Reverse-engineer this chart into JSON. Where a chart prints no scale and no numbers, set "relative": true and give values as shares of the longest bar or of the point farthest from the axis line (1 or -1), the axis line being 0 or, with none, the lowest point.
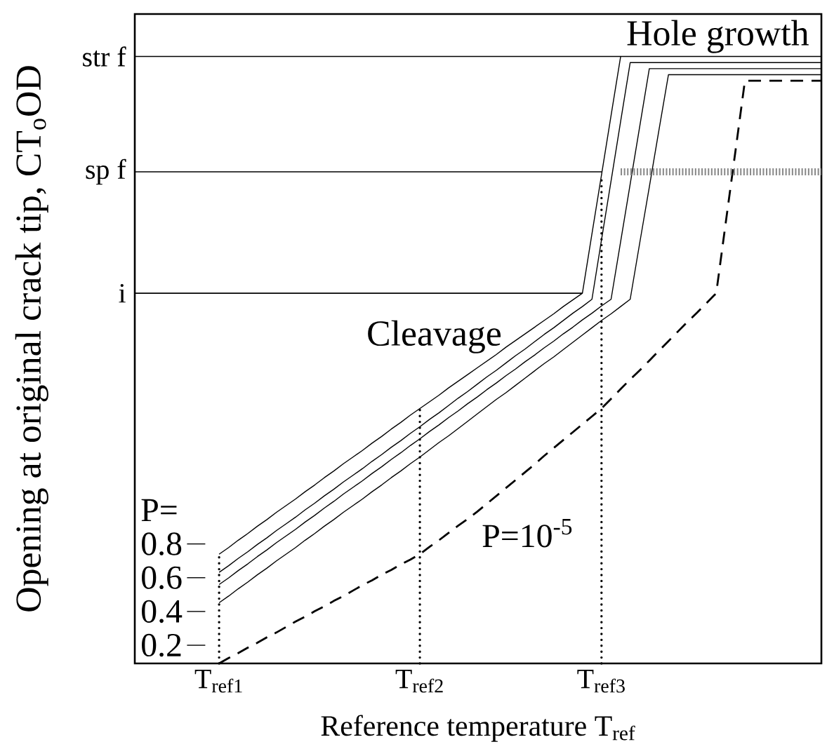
{
  "chart_data": {
    "type": "line",
    "relative": true,
    "legend": "bottom left",
    "xlabel": "Reference temperature T$_{ref}$",
    "ylabel": "Opening at original crack tip, CT$_{o}$OD",
    "legend_title": "P=",
    "annotations": [
      "Hole growth",
      "Cleavage"
    ],
    "categories": [
      "T$_{ref1}$",
      null,
      null,
      null,
      null,
      null,
      null,
      null,
      null,
      null,
      null,
      null,
      null,
      null,
      null,
      null,
      null,
      null,
      null,
      null,
      null,
      "T$_{ref2}$",
      null,
      null,
      null,
      null,
      null,
      null,
      null,
      null,
      null,
      null,
      null,
      null,
      null,
      null,
      null,
      null,
      null,
      null,
      "T$_{ref3}$",
      null,
      null,
      null,
      null,
      null,
      null,
      null,
      null,
      null,
      null,
      null,
      null,
      null,
      null,
      null,
      null,
      null,
      null,
      null,
      null,
      null,
      null,
      null
    ],
    "series": [
      {
        "name": "0.8",
        "color": "#000000",
        "line_style": "solid",
        "values": [
          0.18,
          0.191,
          0.203,
          0.214,
          0.226,
          0.237,
          0.249,
          0.26,
          0.271,
          0.283,
          0.294,
          0.306,
          0.317,
          0.329,
          0.34,
          0.351,
          0.363,
          0.374,
          0.386,
          0.397,
          0.409,
          0.42,
          0.431,
          0.442,
          0.454,
          0.465,
          0.476,
          0.487,
          0.498,
          0.509,
          0.521,
          0.532,
          0.543,
          0.554,
          0.565,
          0.576,
          0.588,
          0.599,
          0.61,
          0.708,
          0.805,
          0.903,
          1,
          1,
          1,
          1,
          1,
          1,
          1,
          1,
          1,
          1,
          1,
          1,
          1,
          1,
          1,
          1,
          1,
          1,
          1,
          1,
          1,
          1
        ]
      },
      {
        "name": "0.6",
        "color": "#000000",
        "line_style": "solid",
        "values": [
          0.15,
          0.161,
          0.173,
          0.184,
          0.196,
          0.207,
          0.219,
          0.23,
          0.241,
          0.253,
          0.264,
          0.276,
          0.287,
          0.299,
          0.31,
          0.321,
          0.333,
          0.344,
          0.356,
          0.367,
          0.379,
          0.39,
          0.402,
          0.413,
          0.425,
          0.437,
          0.448,
          0.46,
          0.472,
          0.483,
          0.495,
          0.507,
          0.518,
          0.53,
          0.542,
          0.553,
          0.565,
          0.577,
          0.588,
          0.6,
          0.698,
          0.795,
          0.893,
          0.99,
          0.99,
          0.99,
          0.99,
          0.99,
          0.99,
          0.99,
          0.99,
          0.99,
          0.99,
          0.99,
          0.99,
          0.99,
          0.99,
          0.99,
          0.99,
          0.99,
          0.99,
          0.99,
          0.99,
          0.99
        ]
      },
      {
        "name": "0.4",
        "color": "#000000",
        "line_style": "solid",
        "values": [
          0.13,
          0.141,
          0.153,
          0.164,
          0.176,
          0.187,
          0.199,
          0.21,
          0.221,
          0.233,
          0.244,
          0.256,
          0.267,
          0.279,
          0.29,
          0.301,
          0.313,
          0.324,
          0.336,
          0.347,
          0.359,
          0.37,
          0.382,
          0.393,
          0.405,
          0.416,
          0.428,
          0.439,
          0.451,
          0.462,
          0.474,
          0.485,
          0.497,
          0.508,
          0.52,
          0.531,
          0.543,
          0.554,
          0.566,
          0.577,
          0.589,
          0.6,
          0.695,
          0.79,
          0.885,
          0.98,
          0.98,
          0.98,
          0.98,
          0.98,
          0.98,
          0.98,
          0.98,
          0.98,
          0.98,
          0.98,
          0.98,
          0.98,
          0.98,
          0.98,
          0.98,
          0.98,
          0.98,
          0.98
        ]
      },
      {
        "name": "0.2",
        "color": "#000000",
        "line_style": "solid",
        "values": [
          0.1,
          0.111,
          0.123,
          0.134,
          0.146,
          0.157,
          0.169,
          0.18,
          0.191,
          0.203,
          0.214,
          0.226,
          0.237,
          0.249,
          0.26,
          0.271,
          0.283,
          0.294,
          0.306,
          0.317,
          0.329,
          0.34,
          0.352,
          0.364,
          0.375,
          0.387,
          0.399,
          0.411,
          0.423,
          0.435,
          0.446,
          0.458,
          0.47,
          0.482,
          0.494,
          0.505,
          0.517,
          0.529,
          0.541,
          0.553,
          0.565,
          0.576,
          0.588,
          0.6,
          0.693,
          0.785,
          0.878,
          0.97,
          0.97,
          0.97,
          0.97,
          0.97,
          0.97,
          0.97,
          0.97,
          0.97,
          0.97,
          0.97,
          0.97,
          0.97,
          0.97,
          0.97,
          0.97,
          0.97
        ]
      },
      {
        "name": "P=10$^{-5}$",
        "color": "#000000",
        "line_style": "dashed",
        "values": [
          0,
          0.009,
          0.017,
          0.026,
          0.034,
          0.043,
          0.051,
          0.06,
          0.069,
          0.077,
          0.086,
          0.094,
          0.103,
          0.111,
          0.12,
          0.129,
          0.137,
          0.146,
          0.154,
          0.163,
          0.171,
          0.18,
          0.192,
          0.203,
          0.215,
          0.227,
          0.238,
          0.25,
          0.263,
          0.276,
          0.289,
          0.302,
          0.315,
          0.328,
          0.342,
          0.355,
          0.368,
          0.381,
          0.394,
          0.407,
          0.42,
          0.436,
          0.452,
          0.468,
          0.483,
          0.499,
          0.515,
          0.531,
          0.547,
          0.563,
          0.578,
          0.594,
          0.61,
          0.727,
          0.843,
          0.96,
          0.96,
          0.96,
          0.96,
          0.96,
          0.96,
          0.96,
          0.96,
          0.96
        ]
      },
      {
        "color": "#888888",
        "line_style": "dotted",
        "values": [
          null,
          null,
          null,
          null,
          null,
          null,
          null,
          null,
          null,
          null,
          null,
          null,
          null,
          null,
          null,
          null,
          null,
          null,
          null,
          null,
          null,
          null,
          null,
          null,
          null,
          null,
          null,
          null,
          null,
          null,
          null,
          null,
          null,
          null,
          null,
          null,
          null,
          null,
          null,
          null,
          null,
          null,
          0.81,
          0.81,
          0.81,
          0.81,
          0.81,
          0.81,
          0.81,
          0.81,
          0.81,
          0.81,
          0.81,
          0.81,
          0.81,
          0.81,
          0.81,
          0.81,
          0.81,
          0.81,
          0.81,
          0.81,
          0.81,
          0.81
        ]
      }
    ],
    "ref_lines": [
      {
        "axis": "y",
        "value": 0.61,
        "label": "i"
      },
      {
        "axis": "y",
        "value": 0.81,
        "label": "sp f"
      },
      {
        "axis": "y",
        "value": 1,
        "label": "str f"
      },
      {
        "axis": "x",
        "value": "T$_{ref1}$",
        "line_style": "dotted"
      },
      {
        "axis": "x",
        "value": "T$_{ref2}$",
        "line_style": "dotted"
      },
      {
        "axis": "x",
        "value": "T$_{ref3}$",
        "line_style": "dotted"
      }
    ]
  }
}
